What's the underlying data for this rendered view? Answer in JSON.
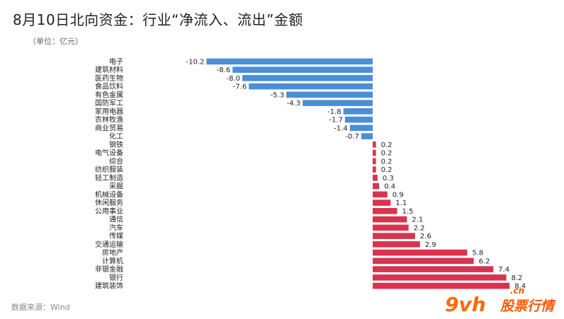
{
  "title": "8月10日北向资金：行业“净流入、流出”金额",
  "unit": "（单位：亿元）",
  "source": "数据来源：Wind",
  "watermark": {
    "logo": "9vh",
    "text": "股票行情",
    "domain": ".cn"
  },
  "colors": {
    "negative": "#4a8fd6",
    "positive": "#d8344f",
    "text": "#222222"
  },
  "chart_data": {
    "type": "bar",
    "orientation": "horizontal",
    "categories": [
      "电子",
      "建筑材料",
      "医药生物",
      "食品饮料",
      "有色金属",
      "国防军工",
      "家用电器",
      "农林牧渔",
      "商业贸易",
      "化工",
      "钢铁",
      "电气设备",
      "综合",
      "纺织服装",
      "轻工制造",
      "采掘",
      "机械设备",
      "休闲服务",
      "公用事业",
      "通信",
      "汽车",
      "传媒",
      "交通运输",
      "房地产",
      "计算机",
      "非银金融",
      "银行",
      "建筑装饰"
    ],
    "values": [
      -10.2,
      -8.6,
      -8.0,
      -7.6,
      -5.3,
      -4.3,
      -1.8,
      -1.7,
      -1.4,
      -0.7,
      0.2,
      0.2,
      0.2,
      0.2,
      0.3,
      0.4,
      0.9,
      1.1,
      1.5,
      2.1,
      2.2,
      2.6,
      2.9,
      5.8,
      6.2,
      7.4,
      8.2,
      8.4
    ],
    "labels": [
      "-10.2",
      "-8.6",
      "-8.0",
      "-7.6",
      "-5.3",
      "-4.3",
      "-1.8",
      "-1.7",
      "-1.4",
      "-0.7",
      "0.2",
      "0.2",
      "0.2",
      "0.2",
      "0.3",
      "0.4",
      "0.9",
      "1.1",
      "1.5",
      "2.1",
      "2.2",
      "2.6",
      "2.9",
      "5.8",
      "6.2",
      "7.4",
      "8.2",
      "8.4"
    ],
    "xlim": [
      -10.2,
      8.4
    ],
    "grid": false,
    "legend": "none"
  }
}
